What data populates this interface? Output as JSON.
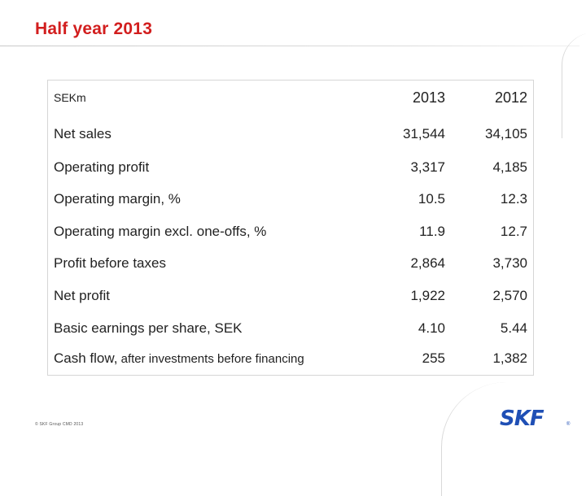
{
  "title": "Half year 2013",
  "table": {
    "unit_label": "SEKm",
    "col_2013": "2013",
    "col_2012": "2012",
    "rows": [
      {
        "label": "Net sales",
        "y2013": "31,544",
        "y2012": "34,105"
      },
      {
        "label": "Operating profit",
        "y2013": "3,317",
        "y2012": "4,185"
      },
      {
        "label": "Operating margin, %",
        "y2013": "10.5",
        "y2012": "12.3"
      },
      {
        "label": "Operating margin excl. one-offs, %",
        "y2013": "11.9",
        "y2012": "12.7"
      },
      {
        "label": "Profit before taxes",
        "y2013": "2,864",
        "y2012": "3,730"
      },
      {
        "label": "Net profit",
        "y2013": "1,922",
        "y2012": "2,570"
      },
      {
        "label": "Basic earnings per share, SEK",
        "y2013": "4.10",
        "y2012": "5.44"
      },
      {
        "label_main": "Cash flow,",
        "label_rest": " after investments before financing",
        "y2013": "255",
        "y2012": "1,382"
      }
    ]
  },
  "footer": "© SKF Group   CMD 2013",
  "logo": {
    "text": "SKF",
    "reg": "®",
    "color": "#1f4fb5"
  },
  "accent_color": "#d21e1e"
}
